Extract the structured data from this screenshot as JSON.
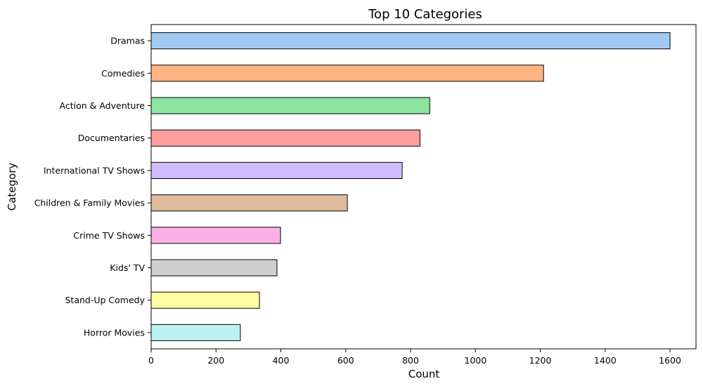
{
  "chart_data": {
    "type": "bar",
    "orientation": "horizontal",
    "title": "Top 10 Categories",
    "xlabel": "Count",
    "ylabel": "Category",
    "xlim": [
      0,
      1680
    ],
    "xticks": [
      0,
      200,
      400,
      600,
      800,
      1000,
      1200,
      1400,
      1600
    ],
    "grid": false,
    "categories": [
      "Dramas",
      "Comedies",
      "Action & Adventure",
      "Documentaries",
      "International TV Shows",
      "Children & Family Movies",
      "Crime TV Shows",
      "Kids' TV",
      "Stand-Up Comedy",
      "Horror Movies"
    ],
    "values": [
      1600,
      1210,
      859,
      829,
      774,
      605,
      399,
      388,
      334,
      275
    ],
    "colors": [
      "#a1c9f4",
      "#ffb482",
      "#8de5a1",
      "#ff9f9b",
      "#d0bbff",
      "#debb9b",
      "#fab0e4",
      "#cfcfcf",
      "#fffea3",
      "#b9f2f0"
    ]
  }
}
